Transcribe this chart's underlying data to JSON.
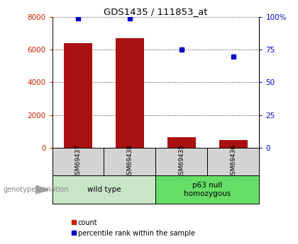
{
  "title": "GDS1435 / 111853_at",
  "samples": [
    "GSM69437",
    "GSM69438",
    "GSM69435",
    "GSM69436"
  ],
  "counts": [
    6400,
    6700,
    620,
    480
  ],
  "percentiles": [
    99,
    99,
    75,
    70
  ],
  "ylim_left": [
    0,
    8000
  ],
  "ylim_right": [
    0,
    100
  ],
  "yticks_left": [
    0,
    2000,
    4000,
    6000,
    8000
  ],
  "yticks_right": [
    0,
    25,
    50,
    75,
    100
  ],
  "yticklabels_left": [
    "0",
    "2000",
    "4000",
    "6000",
    "8000"
  ],
  "yticklabels_right": [
    "0",
    "25",
    "50",
    "75",
    "100%"
  ],
  "groups": [
    {
      "label": "wild type",
      "span": [
        0,
        2
      ],
      "color": "#c8e6c8"
    },
    {
      "label": "p63 null\nhomozygous",
      "span": [
        2,
        4
      ],
      "color": "#66dd66"
    }
  ],
  "bar_color": "#aa1111",
  "dot_color": "#0000cc",
  "bar_width": 0.55,
  "bar_color_legend": "#cc2200",
  "dot_color_legend": "#0000cc",
  "left_tick_color": "#cc2200",
  "right_tick_color": "#0000cc",
  "background_color": "#ffffff",
  "genotype_label": "genotype/variation",
  "legend_count": "count",
  "legend_pct": "percentile rank within the sample",
  "sample_box_color": "#d3d3d3",
  "grid_linestyle": ":",
  "grid_color": "#333333",
  "grid_linewidth": 0.7
}
